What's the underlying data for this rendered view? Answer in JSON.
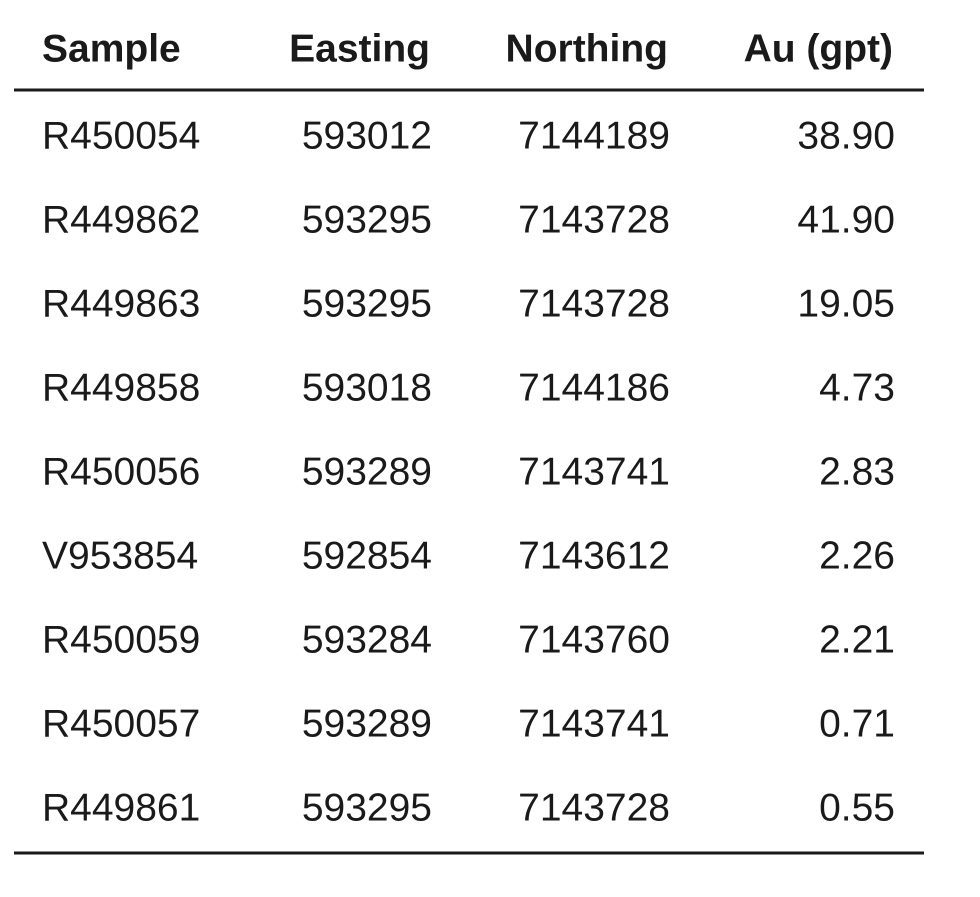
{
  "table": {
    "header": [
      "Sample",
      "Easting",
      "Northing",
      "Au (gpt)"
    ],
    "rows": [
      [
        "R450054",
        "593012",
        "7144189",
        "38.90"
      ],
      [
        "R449862",
        "593295",
        "7143728",
        "41.90"
      ],
      [
        "R449863",
        "593295",
        "7143728",
        "19.05"
      ],
      [
        "R449858",
        "593018",
        "7144186",
        "4.73"
      ],
      [
        "R450056",
        "593289",
        "7143741",
        "2.83"
      ],
      [
        "V953854",
        "592854",
        "7143612",
        "2.26"
      ],
      [
        "R450059",
        "593284",
        "7143760",
        "2.21"
      ],
      [
        "R450057",
        "593289",
        "7143741",
        "0.71"
      ],
      [
        "R449861",
        "593295",
        "7143728",
        "0.55"
      ]
    ]
  }
}
